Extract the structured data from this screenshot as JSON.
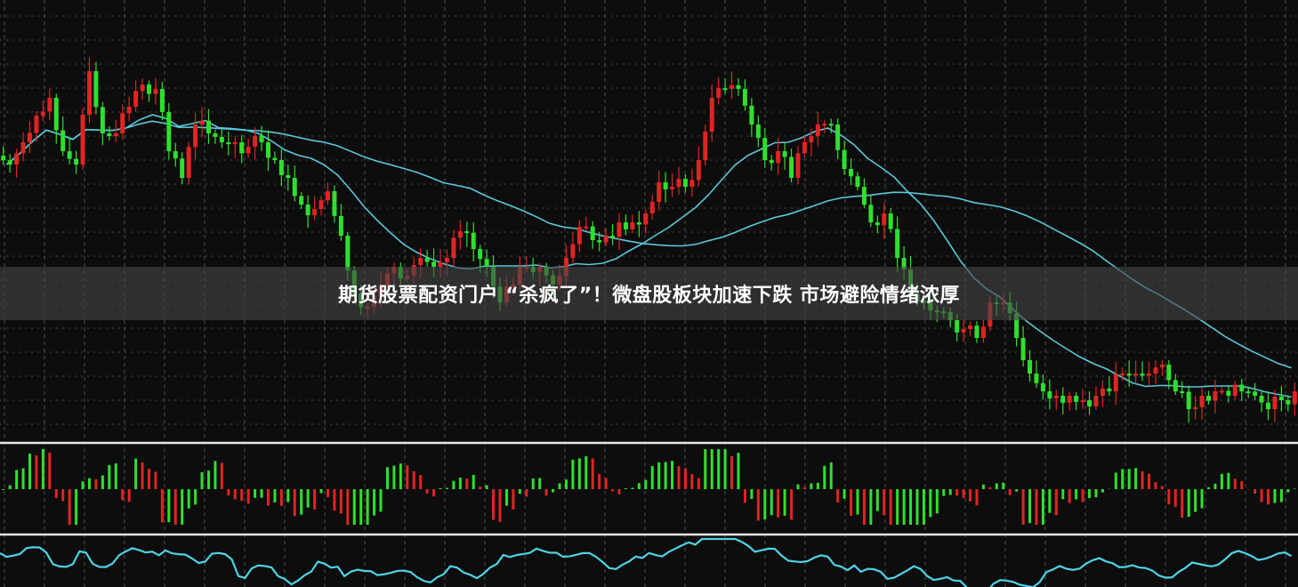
{
  "headline": "期货股票配资门户 “杀疯了”！微盘股板块加速下跌 市场避险情绪浓厚",
  "chart_data": {
    "type": "candlestick",
    "title": "",
    "grid": true,
    "colors": {
      "up": "#e02424",
      "down": "#2ee02e",
      "ma": "#5bc8dc",
      "oscillator": "#4fd3e6",
      "grid": "#888888",
      "separator": "#e6e6e6"
    },
    "moving_averages": [
      10,
      30
    ],
    "closes": [
      315,
      340,
      370,
      390,
      330,
      315,
      420,
      350,
      350,
      380,
      405,
      400,
      330,
      300,
      360,
      350,
      340,
      340,
      335,
      340,
      320,
      300,
      270,
      265,
      285,
      235,
      170,
      155,
      180,
      200,
      190,
      210,
      200,
      210,
      240,
      220,
      200,
      160,
      180,
      200,
      200,
      180,
      210,
      245,
      230,
      235,
      250,
      250,
      260,
      295,
      290,
      290,
      320,
      390,
      400,
      400,
      360,
      320,
      330,
      300,
      340,
      360,
      360,
      310,
      290,
      250,
      260,
      210,
      170,
      160,
      150,
      140,
      130,
      120,
      160,
      160,
      120,
      80,
      60,
      55,
      55,
      50,
      55,
      60,
      80,
      80,
      80,
      90,
      60,
      40,
      55,
      60,
      55,
      60,
      55,
      40,
      50,
      60
    ],
    "panels": [
      "price",
      "histogram",
      "oscillator"
    ]
  }
}
